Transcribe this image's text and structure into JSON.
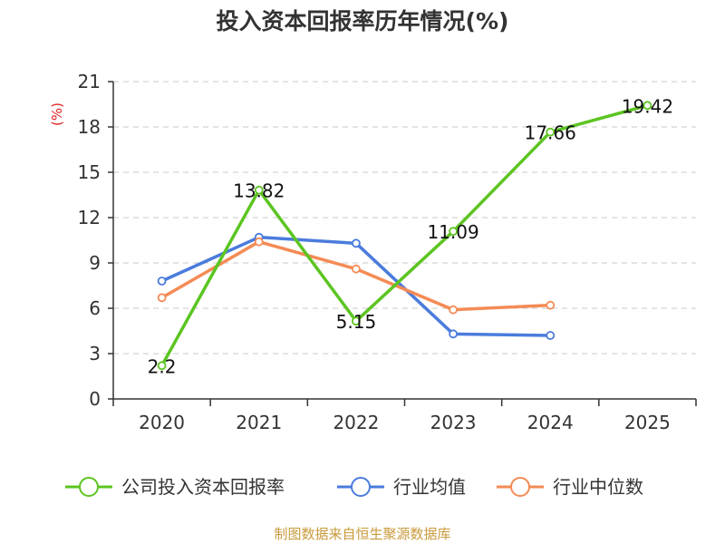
{
  "chart_data": {
    "type": "line",
    "title": "投入资本回报率历年情况(%)",
    "ylabel": "(%)",
    "xlabel": "",
    "ylim": [
      0,
      21
    ],
    "y_ticks": [
      "0",
      "3",
      "6",
      "9",
      "12",
      "15",
      "18",
      "21"
    ],
    "categories": [
      "2020",
      "2021",
      "2022",
      "2023",
      "2024",
      "2025"
    ],
    "series": [
      {
        "name": "公司投入资本回报率",
        "color": "#5cc521",
        "values": [
          2.2,
          13.82,
          5.15,
          11.09,
          17.66,
          19.42
        ],
        "labels": [
          "2.2",
          "13.82",
          "5.15",
          "11.09",
          "17.66",
          "19.42"
        ]
      },
      {
        "name": "行业均值",
        "color": "#4a7cdc",
        "values": [
          7.8,
          10.7,
          10.3,
          4.3,
          4.2,
          null
        ]
      },
      {
        "name": "行业中位数",
        "color": "#f48b55",
        "values": [
          6.7,
          10.4,
          8.6,
          5.9,
          6.2,
          null
        ]
      }
    ],
    "grid": true,
    "legend": "bottom"
  },
  "footer": {
    "source": "制图数据来自恒生聚源数据库"
  }
}
